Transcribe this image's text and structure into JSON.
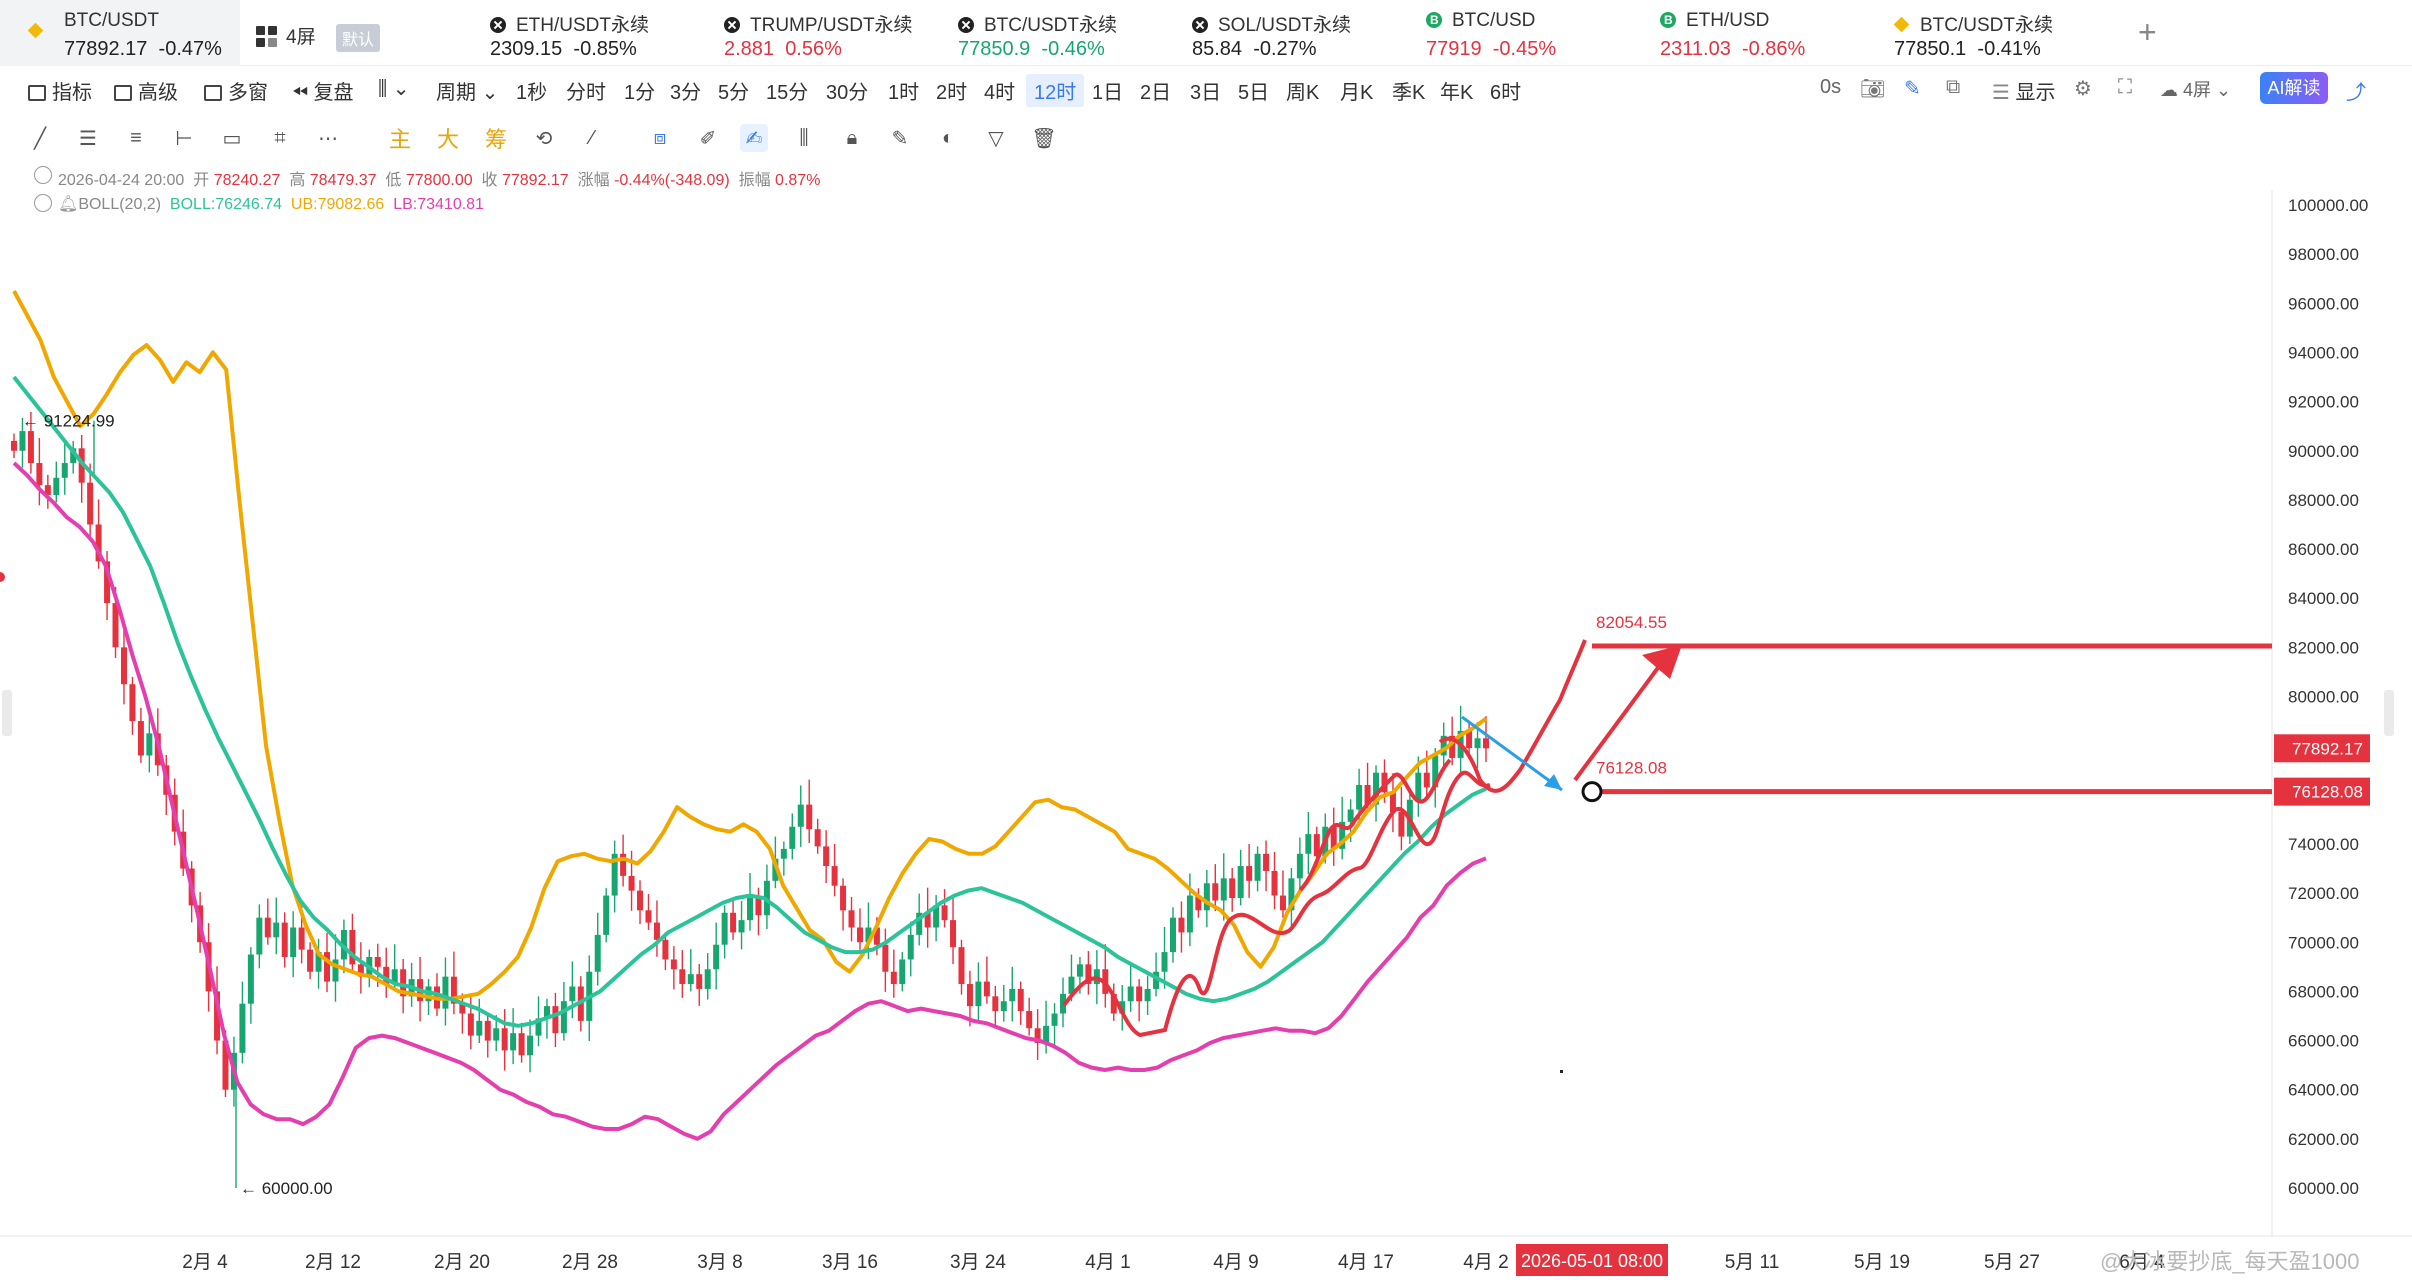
{
  "tickers": [
    {
      "name": "BTC/USDT",
      "price": "77892.17",
      "change": "-0.47%",
      "icon": "binance-icon",
      "color": "#222222"
    },
    {
      "name": "ETH/USDT永续",
      "price": "2309.15",
      "change": "-0.85%",
      "icon": "okx-icon",
      "color": "#222222"
    },
    {
      "name": "TRUMP/USDT永续",
      "price": "2.881",
      "change": "0.56%",
      "icon": "okx-icon",
      "color": "#e5323f"
    },
    {
      "name": "BTC/USDT永续",
      "price": "77850.9",
      "change": "-0.46%",
      "icon": "okx-icon",
      "color": "#17a66f"
    },
    {
      "name": "SOL/USDT永续",
      "price": "85.84",
      "change": "-0.27%",
      "icon": "okx-icon",
      "color": "#222222"
    },
    {
      "name": "BTC/USD",
      "price": "77919",
      "change": "-0.45%",
      "icon": "bitstamp-icon",
      "color": "#e5323f"
    },
    {
      "name": "ETH/USD",
      "price": "2311.03",
      "change": "-0.86%",
      "icon": "bitstamp-icon",
      "color": "#e5323f"
    },
    {
      "name": "BTC/USDT永续",
      "price": "77850.1",
      "change": "-0.41%",
      "icon": "binance-icon",
      "color": "#222222"
    }
  ],
  "screens_label": "4屏",
  "default_label": "默认",
  "toolbar": {
    "indicators": "指标",
    "advanced": "高级",
    "multi_window": "多窗",
    "replay": "复盘",
    "period": "周期",
    "intervals": [
      "1秒",
      "分时",
      "1分",
      "3分",
      "5分",
      "15分",
      "30分",
      "1时",
      "2时",
      "4时",
      "12时",
      "1日",
      "2日",
      "3日",
      "5日",
      "周K",
      "月K",
      "季K",
      "年K",
      "6时"
    ],
    "selected_interval": "12时",
    "countdown": "0s",
    "display": "显示",
    "layout": "4屏",
    "ai": "AI解读"
  },
  "drawing_tools": {
    "main": "主",
    "big": "大",
    "chips": "筹"
  },
  "ohlc": {
    "date": "2026-04-24 20:00",
    "open_label": "开",
    "open": "78240.27",
    "high_label": "高",
    "high": "78479.37",
    "low_label": "低",
    "low": "77800.00",
    "close_label": "收",
    "close": "77892.17",
    "change_label": "涨幅",
    "change": "-0.44%(-348.09)",
    "amp_label": "振幅",
    "amp": "0.87%"
  },
  "boll": {
    "name": "BOLL(20,2)",
    "mid": "BOLL:76246.74",
    "ub": "UB:79082.66",
    "lb": "LB:73410.81"
  },
  "annotations": {
    "target_price": "82054.55",
    "support_price": "76128.08",
    "high_mark": "91224.99",
    "low_mark": "60000.00",
    "current_price": "77892.17",
    "crosshair_date": "2026-05-01 08:00"
  },
  "colors": {
    "up": "#17a66f",
    "down": "#e5323f",
    "ub": "#f0a800",
    "mid": "#2cc39b",
    "lb": "#e43fae",
    "accent": "#3a7af0"
  },
  "chart_data": {
    "type": "candlestick",
    "title": "BTC/USDT 12时",
    "yticks": [
      "100000.00",
      "98000.00",
      "96000.00",
      "94000.00",
      "92000.00",
      "90000.00",
      "88000.00",
      "86000.00",
      "84000.00",
      "82000.00",
      "80000.00",
      "78000.00",
      "76000.00",
      "74000.00",
      "72000.00",
      "70000.00",
      "68000.00",
      "66000.00",
      "64000.00",
      "62000.00",
      "60000.00"
    ],
    "ylim": [
      59000,
      101000
    ],
    "xticks": [
      "2月 4",
      "2月 12",
      "2月 20",
      "2月 28",
      "3月 8",
      "3月 16",
      "3月 24",
      "4月 1",
      "4月 9",
      "4月 17",
      "4月 2",
      "5月 11",
      "5月 19",
      "5月 27",
      "6月 4"
    ],
    "close_series": [
      90000,
      90800,
      89500,
      88600,
      88200,
      88900,
      89500,
      90100,
      88700,
      87000,
      85500,
      83800,
      82000,
      80500,
      79000,
      77600,
      78500,
      77200,
      76000,
      74500,
      73000,
      71500,
      70000,
      68000,
      66000,
      64000,
      65500,
      67500,
      69500,
      71000,
      70200,
      70800,
      69400,
      70600,
      69700,
      68800,
      69600,
      68400,
      69300,
      70500,
      69100,
      68600,
      69400,
      69000,
      68300,
      68900,
      67800,
      68500,
      67600,
      68200,
      67300,
      68600,
      67500,
      67100,
      66200,
      66800,
      66000,
      66500,
      65600,
      66300,
      65400,
      66200,
      66900,
      67400,
      66300,
      67600,
      68200,
      66800,
      68800,
      70300,
      71900,
      73600,
      72700,
      72100,
      71300,
      70800,
      70100,
      69300,
      68900,
      68300,
      68700,
      68100,
      68900,
      69900,
      71200,
      70400,
      70900,
      71800,
      71100,
      72500,
      73400,
      73800,
      74700,
      75600,
      74600,
      73900,
      73100,
      72300,
      71300,
      70600,
      70000,
      70600,
      69900,
      68800,
      68300,
      69300,
      70300,
      71200,
      70600,
      71500,
      70900,
      69800,
      68300,
      67400,
      68400,
      67800,
      67200,
      67600,
      68100,
      67200,
      66500,
      65900,
      66600,
      67100,
      67900,
      68600,
      69100,
      68300,
      68900,
      67900,
      67100,
      67600,
      68200,
      67600,
      68100,
      68800,
      69600,
      71000,
      70400,
      71900,
      71300,
      72400,
      71700,
      72600,
      71800,
      73100,
      72500,
      73600,
      72900,
      71900,
      71300,
      72600,
      73600,
      74400,
      73500,
      74700,
      73800,
      74900,
      75400,
      76400,
      75600,
      76900,
      76100,
      75300,
      74300,
      75800,
      76900,
      76300,
      77600,
      78400,
      77500,
      78600,
      77900,
      78300,
      77892
    ],
    "ub_series": [
      96500,
      95500,
      94500,
      93000,
      92000,
      91000,
      91500,
      92300,
      93200,
      93900,
      94300,
      93700,
      92800,
      93600,
      93200,
      94000,
      93300,
      88000,
      83000,
      78000,
      75000,
      72300,
      70700,
      69500,
      69100,
      68900,
      68700,
      68600,
      68300,
      68000,
      67900,
      67800,
      67700,
      67700,
      67800,
      67900,
      68300,
      68800,
      69400,
      70600,
      72200,
      73300,
      73500,
      73600,
      73400,
      73300,
      73400,
      73200,
      73700,
      74500,
      75500,
      75100,
      74800,
      74600,
      74500,
      74800,
      74500,
      73800,
      72300,
      71400,
      70500,
      70100,
      69200,
      68800,
      69500,
      70600,
      71800,
      72800,
      73600,
      74200,
      74100,
      73800,
      73600,
      73600,
      73900,
      74500,
      75100,
      75700,
      75800,
      75500,
      75400,
      75100,
      74800,
      74500,
      73800,
      73600,
      73400,
      73000,
      72500,
      72000,
      71600,
      71300,
      70700,
      69600,
      69000,
      69800,
      71200,
      72100,
      72800,
      73600,
      74000,
      74500,
      75300,
      75900,
      76100,
      76700,
      77300,
      77600,
      77900,
      78400,
      78700,
      79100
    ],
    "mid_series": [
      93000,
      92300,
      91600,
      90900,
      90200,
      89500,
      88900,
      88300,
      87500,
      86400,
      85300,
      83800,
      82200,
      80800,
      79500,
      78300,
      77200,
      76100,
      75000,
      73800,
      72700,
      71700,
      71000,
      70500,
      69900,
      69400,
      69000,
      68600,
      68300,
      68200,
      68000,
      67900,
      67700,
      67500,
      67300,
      67000,
      66700,
      66600,
      66700,
      66900,
      67100,
      67400,
      67700,
      68000,
      68500,
      69000,
      69500,
      69900,
      70400,
      70700,
      71000,
      71300,
      71600,
      71800,
      71900,
      71800,
      71400,
      70900,
      70400,
      70100,
      69800,
      69600,
      69600,
      69700,
      70000,
      70400,
      70800,
      71200,
      71600,
      71900,
      72100,
      72200,
      72000,
      71800,
      71600,
      71300,
      71000,
      70700,
      70400,
      70100,
      69800,
      69400,
      69100,
      68800,
      68500,
      68200,
      67900,
      67700,
      67600,
      67700,
      67900,
      68100,
      68400,
      68800,
      69200,
      69600,
      70000,
      70600,
      71200,
      71800,
      72400,
      73000,
      73600,
      74100,
      74700,
      75200,
      75600,
      76000,
      76246
    ],
    "lb_series": [
      89500,
      89000,
      88400,
      87900,
      87300,
      86900,
      86300,
      85300,
      83600,
      81700,
      80000,
      78000,
      75700,
      73400,
      71100,
      68700,
      66200,
      64300,
      63400,
      63000,
      62800,
      62800,
      62600,
      62900,
      63400,
      64500,
      65700,
      66100,
      66200,
      66100,
      65900,
      65700,
      65500,
      65300,
      65100,
      64800,
      64400,
      64000,
      63800,
      63500,
      63300,
      63000,
      62900,
      62700,
      62500,
      62400,
      62400,
      62600,
      62900,
      62800,
      62500,
      62200,
      62000,
      62300,
      63000,
      63500,
      64000,
      64500,
      65000,
      65400,
      65800,
      66200,
      66400,
      66800,
      67200,
      67500,
      67600,
      67400,
      67200,
      67300,
      67200,
      67100,
      67000,
      66800,
      66700,
      66500,
      66300,
      66100,
      66000,
      65800,
      65500,
      65100,
      64900,
      64800,
      64900,
      64800,
      64800,
      64900,
      65200,
      65400,
      65600,
      65900,
      66100,
      66200,
      66300,
      66400,
      66500,
      66400,
      66400,
      66300,
      66500,
      67000,
      67700,
      68400,
      69000,
      69600,
      70200,
      71000,
      71500,
      72300,
      72800,
      73200,
      73410
    ]
  }
}
